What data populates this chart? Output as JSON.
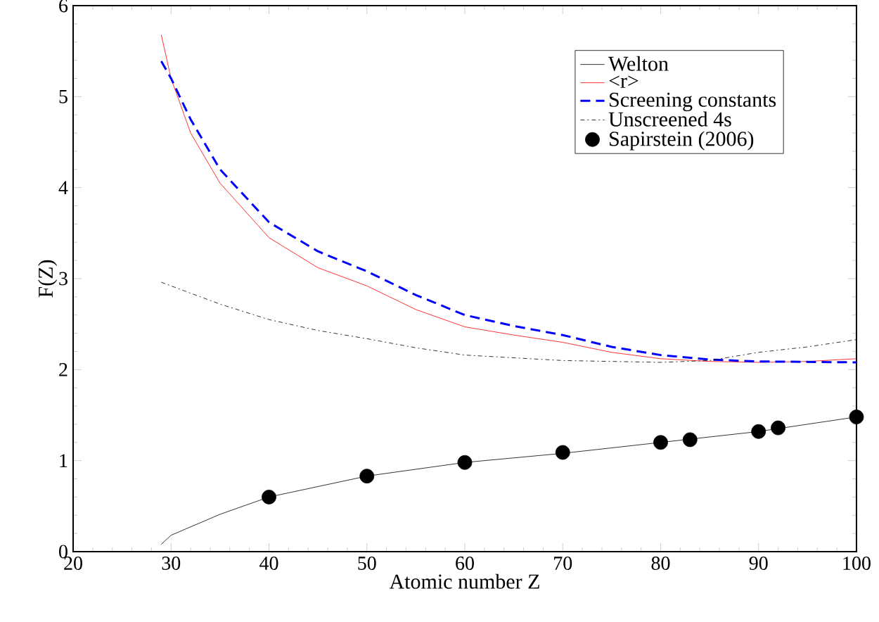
{
  "chart_data": {
    "type": "line",
    "xlabel": "Atomic number Z",
    "ylabel": "F(Z)",
    "xlim": [
      20,
      100
    ],
    "ylim": [
      0,
      6
    ],
    "xticks": [
      20,
      30,
      40,
      50,
      60,
      70,
      80,
      90,
      100
    ],
    "yticks": [
      0,
      1,
      2,
      3,
      4,
      5,
      6
    ],
    "grid": false,
    "legend": "top right",
    "series": [
      {
        "name": "Welton",
        "color": "#000000",
        "line_style": "solid",
        "marker": "none",
        "x": [
          29,
          30,
          35,
          40,
          50,
          60,
          70,
          80,
          90,
          100
        ],
        "values": [
          0.08,
          0.18,
          0.41,
          0.6,
          0.83,
          0.98,
          1.08,
          1.2,
          1.32,
          1.48
        ]
      },
      {
        "name": "<r>",
        "color": "#ff0000",
        "line_style": "solid",
        "marker": "none",
        "x": [
          29,
          30,
          32,
          35,
          40,
          45,
          50,
          55,
          60,
          65,
          70,
          75,
          80,
          85,
          90,
          95,
          100
        ],
        "values": [
          5.68,
          5.2,
          4.6,
          4.05,
          3.45,
          3.12,
          2.92,
          2.66,
          2.47,
          2.38,
          2.3,
          2.19,
          2.12,
          2.09,
          2.08,
          2.09,
          2.12
        ]
      },
      {
        "name": "Screening constants",
        "color": "#0000ff",
        "line_style": "dashed",
        "marker": "none",
        "x": [
          29,
          30,
          32,
          35,
          40,
          45,
          50,
          55,
          60,
          65,
          70,
          75,
          80,
          85,
          90,
          100
        ],
        "values": [
          5.39,
          5.2,
          4.75,
          4.2,
          3.62,
          3.3,
          3.08,
          2.82,
          2.6,
          2.48,
          2.38,
          2.25,
          2.16,
          2.11,
          2.09,
          2.08
        ]
      },
      {
        "name": "Unscreened 4s",
        "color": "#000000",
        "line_style": "dashdot",
        "marker": "none",
        "x": [
          29,
          35,
          40,
          45,
          50,
          55,
          60,
          70,
          80,
          85,
          90,
          95,
          100
        ],
        "values": [
          2.96,
          2.72,
          2.55,
          2.43,
          2.34,
          2.24,
          2.16,
          2.1,
          2.08,
          2.1,
          2.19,
          2.25,
          2.33
        ]
      },
      {
        "name": "Sapirstein (2006)",
        "type": "scatter",
        "color": "#000000",
        "marker": "circle",
        "x": [
          40,
          50,
          60,
          70,
          80,
          83,
          90,
          92,
          100
        ],
        "values": [
          0.6,
          0.83,
          0.98,
          1.09,
          1.2,
          1.23,
          1.32,
          1.36,
          1.48
        ]
      }
    ]
  }
}
